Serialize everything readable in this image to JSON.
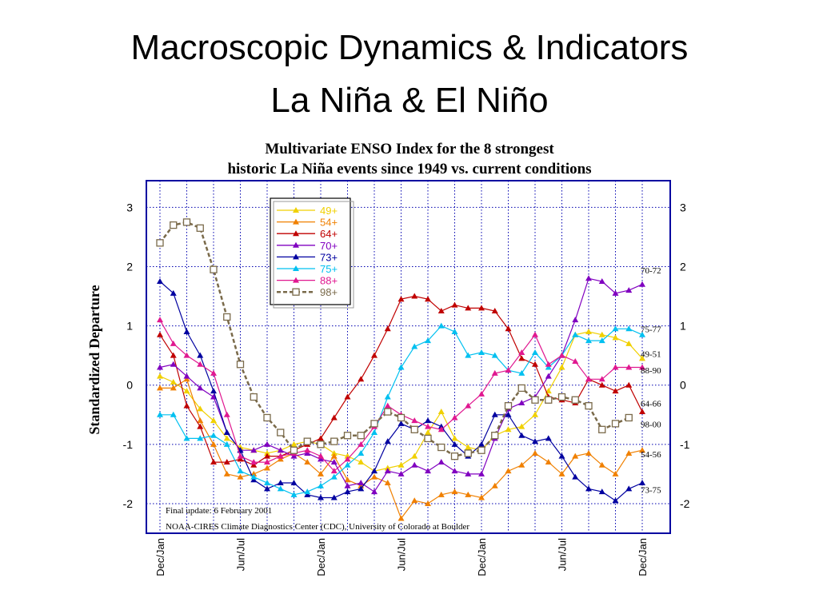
{
  "slide": {
    "title_line1": "Macroscopic Dynamics & Indicators",
    "title_line2": "La Niña  & El Niño"
  },
  "chart_data": {
    "type": "line",
    "title_line1": "Multivariate ENSO Index for the 8 strongest",
    "title_line2": "historic La Niña events since 1949 vs. current conditions",
    "ylabel": "Standardized Departure",
    "xlabel": "",
    "ylim": [
      -2.5,
      3.45
    ],
    "yticks": [
      3,
      2,
      1,
      0,
      -1,
      -2
    ],
    "x_count": 37,
    "xticks": [
      {
        "i": 0,
        "label": "Dec/Jan"
      },
      {
        "i": 6,
        "label": "Jun/Jul"
      },
      {
        "i": 12,
        "label": "Dec/Jan"
      },
      {
        "i": 18,
        "label": "Jun/Jul"
      },
      {
        "i": 24,
        "label": "Dec/Jan"
      },
      {
        "i": 30,
        "label": "Jun/Jul"
      },
      {
        "i": 36,
        "label": "Dec/Jan"
      }
    ],
    "grid": true,
    "legend_position": "top-left",
    "notes": [
      "Final update: 6 February 2001",
      "NOAA-CIRES Climate Diagnostics Center (CDC), University of Colorado at Boulder"
    ],
    "series": [
      {
        "name": "49+",
        "end_label": "49-51",
        "color": "#f0d000",
        "marker": "triangle",
        "values": [
          0.15,
          0.05,
          -0.1,
          -0.4,
          -0.6,
          -0.9,
          -1.05,
          -1.1,
          -1.15,
          -1.1,
          -1.0,
          -0.95,
          -1.0,
          -1.15,
          -1.2,
          -1.3,
          -1.45,
          -1.4,
          -1.35,
          -1.2,
          -0.8,
          -0.45,
          -0.9,
          -1.05,
          -1.1,
          -0.85,
          -0.75,
          -0.7,
          -0.5,
          -0.1,
          0.3,
          0.85,
          0.9,
          0.85,
          0.8,
          0.7,
          0.45
        ]
      },
      {
        "name": "54+",
        "end_label": "54-56",
        "color": "#f08000",
        "marker": "triangle",
        "values": [
          -0.05,
          -0.05,
          0.1,
          -0.6,
          -1.0,
          -1.5,
          -1.55,
          -1.5,
          -1.4,
          -1.25,
          -1.15,
          -1.3,
          -1.5,
          -1.2,
          -1.6,
          -1.7,
          -1.55,
          -1.65,
          -2.25,
          -1.95,
          -2.0,
          -1.85,
          -1.8,
          -1.85,
          -1.9,
          -1.7,
          -1.45,
          -1.35,
          -1.15,
          -1.3,
          -1.5,
          -1.2,
          -1.15,
          -1.35,
          -1.5,
          -1.15,
          -1.1
        ]
      },
      {
        "name": "64+",
        "end_label": "64-66",
        "color": "#c00000",
        "marker": "triangle",
        "values": [
          0.85,
          0.5,
          -0.35,
          -0.7,
          -1.3,
          -1.3,
          -1.25,
          -1.35,
          -1.2,
          -1.2,
          -1.1,
          -1.0,
          -0.9,
          -0.55,
          -0.2,
          0.1,
          0.5,
          0.95,
          1.45,
          1.5,
          1.45,
          1.25,
          1.35,
          1.3,
          1.3,
          1.25,
          0.95,
          0.45,
          0.35,
          -0.2,
          -0.25,
          -0.3,
          0.1,
          0.0,
          -0.1,
          0.0,
          -0.45
        ]
      },
      {
        "name": "70+",
        "end_label": "70-72",
        "color": "#8000c0",
        "marker": "triangle",
        "values": [
          0.3,
          0.35,
          0.15,
          -0.05,
          -0.2,
          -0.8,
          -1.1,
          -1.1,
          -1.0,
          -1.1,
          -1.2,
          -1.15,
          -1.25,
          -1.3,
          -1.7,
          -1.65,
          -1.8,
          -1.45,
          -1.5,
          -1.35,
          -1.45,
          -1.3,
          -1.45,
          -1.5,
          -1.5,
          -0.9,
          -0.4,
          -0.3,
          -0.2,
          0.15,
          0.5,
          1.1,
          1.8,
          1.75,
          1.55,
          1.6,
          1.7
        ]
      },
      {
        "name": "73+",
        "end_label": "73-75",
        "color": "#0000a0",
        "marker": "triangle",
        "values": [
          1.75,
          1.55,
          0.9,
          0.5,
          -0.1,
          -0.8,
          -1.1,
          -1.6,
          -1.75,
          -1.65,
          -1.65,
          -1.85,
          -1.9,
          -1.9,
          -1.8,
          -1.75,
          -1.45,
          -0.95,
          -0.65,
          -0.75,
          -0.6,
          -0.7,
          -1.0,
          -1.2,
          -1.0,
          -0.5,
          -0.5,
          -0.85,
          -0.95,
          -0.9,
          -1.2,
          -1.55,
          -1.75,
          -1.8,
          -1.95,
          -1.75,
          -1.65
        ]
      },
      {
        "name": "75+",
        "end_label": "75-77",
        "color": "#00c0f0",
        "marker": "triangle",
        "values": [
          -0.5,
          -0.5,
          -0.9,
          -0.9,
          -0.85,
          -1.0,
          -1.45,
          -1.55,
          -1.65,
          -1.75,
          -1.85,
          -1.8,
          -1.7,
          -1.55,
          -1.35,
          -1.15,
          -0.8,
          -0.2,
          0.3,
          0.65,
          0.75,
          1.0,
          0.9,
          0.5,
          0.55,
          0.5,
          0.25,
          0.2,
          0.55,
          0.3,
          0.5,
          0.85,
          0.75,
          0.75,
          0.95,
          0.95,
          0.85
        ]
      },
      {
        "name": "88+",
        "end_label": "88-90",
        "color": "#e01890",
        "marker": "triangle",
        "values": [
          1.1,
          0.7,
          0.5,
          0.35,
          0.2,
          -0.5,
          -1.2,
          -1.3,
          -1.3,
          -1.2,
          -1.15,
          -1.1,
          -1.2,
          -1.45,
          -1.25,
          -1.0,
          -0.7,
          -0.35,
          -0.5,
          -0.6,
          -0.7,
          -0.75,
          -0.55,
          -0.35,
          -0.15,
          0.2,
          0.25,
          0.55,
          0.85,
          0.35,
          0.5,
          0.4,
          0.1,
          0.1,
          0.3,
          0.3,
          0.3
        ]
      },
      {
        "name": "98+",
        "end_label": "98-00",
        "color": "#7a6a4a",
        "marker": "square",
        "dashed": true,
        "values": [
          2.4,
          2.7,
          2.75,
          2.65,
          1.95,
          1.15,
          0.35,
          -0.2,
          -0.55,
          -0.8,
          -1.1,
          -0.95,
          -1.0,
          -0.95,
          -0.85,
          -0.85,
          -0.65,
          -0.45,
          -0.55,
          -0.75,
          -0.9,
          -1.05,
          -1.2,
          -1.15,
          -1.1,
          -0.85,
          -0.35,
          -0.05,
          -0.25,
          -0.25,
          -0.2,
          -0.25,
          -0.35,
          -0.75,
          -0.65,
          -0.55,
          null
        ]
      }
    ]
  }
}
